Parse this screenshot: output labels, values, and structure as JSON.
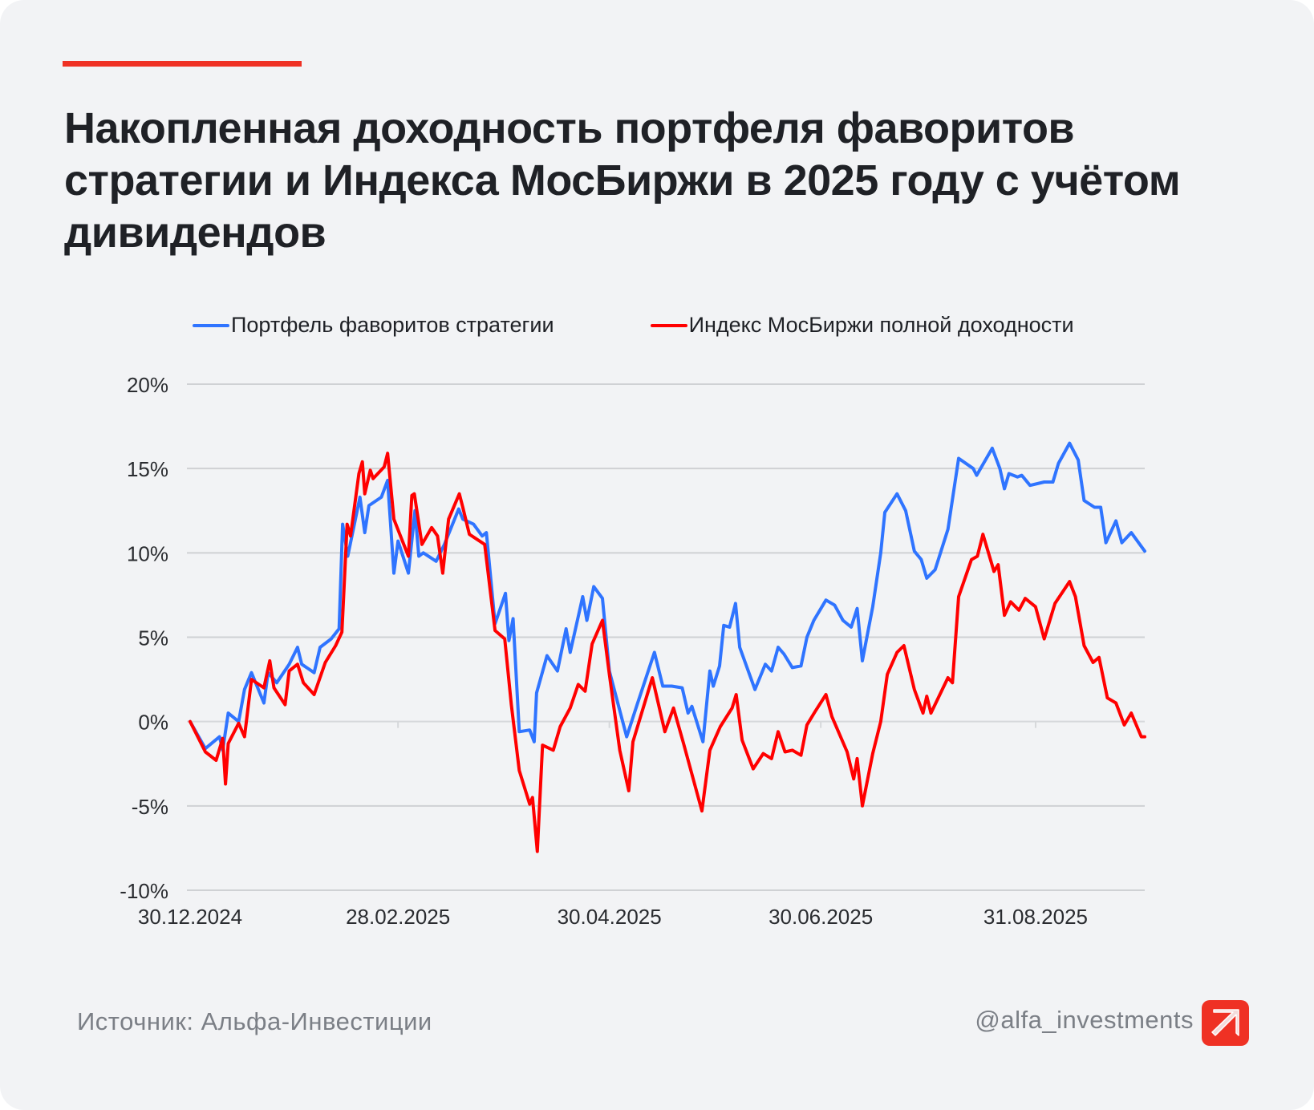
{
  "title": "Накопленная доходность портфеля фаворитов стратегии и Индекса МосБиржи в 2025 году с учётом дивидендов",
  "footer": {
    "source": "Источник: Альфа-Инвестиции",
    "handle": "@alfa_investments",
    "logo_icon": "alfa-arrow-logo-icon"
  },
  "colors": {
    "accent": "#ef3124",
    "blue": "#2f74ff",
    "red": "#ff0000",
    "grid": "#cfd1d4"
  },
  "chart_data": {
    "type": "line",
    "title": "Накопленная доходность портфеля фаворитов стратегии и Индекса МосБиржи в 2025 году с учётом дивидендов",
    "xlabel": "",
    "ylabel": "",
    "x_unit": "days since 30.12.2024",
    "xlim": [
      0,
      275.5
    ],
    "ylim": [
      -10,
      20
    ],
    "yticks": [
      20,
      15,
      10,
      5,
      0,
      -5,
      -10
    ],
    "ytick_labels": [
      "20%",
      "15%",
      "10%",
      "5%",
      "0%",
      "-5%",
      "-10%"
    ],
    "xticks": [
      0,
      60,
      121,
      182,
      244
    ],
    "xtick_labels": [
      "30.12.2024",
      "28.02.2025",
      "30.04.2025",
      "30.06.2025",
      "31.08.2025"
    ],
    "grid": true,
    "legend_position": "top",
    "series": [
      {
        "name": "Портфель фаворитов стратегии",
        "color": "#2f74ff",
        "points": [
          [
            0,
            0
          ],
          [
            4.4,
            -1.6
          ],
          [
            8.5,
            -0.9
          ],
          [
            9.4,
            -1.7
          ],
          [
            11,
            0.5
          ],
          [
            14,
            0
          ],
          [
            15.7,
            1.9
          ],
          [
            17.7,
            2.9
          ],
          [
            21.3,
            1.1
          ],
          [
            22.5,
            2.9
          ],
          [
            25,
            2.3
          ],
          [
            28.6,
            3.4
          ],
          [
            31,
            4.4
          ],
          [
            32.2,
            3.4
          ],
          [
            35.8,
            2.9
          ],
          [
            37.5,
            4.4
          ],
          [
            40.7,
            4.9
          ],
          [
            43,
            5.5
          ],
          [
            44,
            11.7
          ],
          [
            45.5,
            9.8
          ],
          [
            49,
            13.3
          ],
          [
            50.4,
            11.2
          ],
          [
            51.6,
            12.8
          ],
          [
            55.2,
            13.3
          ],
          [
            57,
            14.3
          ],
          [
            58.8,
            8.8
          ],
          [
            60,
            10.7
          ],
          [
            63,
            8.8
          ],
          [
            64.9,
            12.5
          ],
          [
            66,
            9.8
          ],
          [
            67.3,
            10
          ],
          [
            71,
            9.5
          ],
          [
            73.4,
            10.5
          ],
          [
            77.5,
            12.6
          ],
          [
            78.7,
            12
          ],
          [
            81.8,
            11.7
          ],
          [
            84.3,
            11
          ],
          [
            85.5,
            11.2
          ],
          [
            88,
            5.8
          ],
          [
            91,
            7.6
          ],
          [
            92,
            4.8
          ],
          [
            93.2,
            6.1
          ],
          [
            95,
            -0.6
          ],
          [
            98,
            -0.5
          ],
          [
            99.3,
            -1.2
          ],
          [
            100,
            1.7
          ],
          [
            103,
            3.9
          ],
          [
            106,
            3
          ],
          [
            108.5,
            5.5
          ],
          [
            109.7,
            4.1
          ],
          [
            113.3,
            7.4
          ],
          [
            114.5,
            6
          ],
          [
            116.5,
            8
          ],
          [
            119,
            7.3
          ],
          [
            121,
            3
          ],
          [
            126,
            -0.9
          ],
          [
            129,
            1
          ],
          [
            134,
            4.1
          ],
          [
            136.4,
            2.1
          ],
          [
            139,
            2.1
          ],
          [
            142,
            2
          ],
          [
            143.7,
            0.5
          ],
          [
            144.8,
            0.9
          ],
          [
            148,
            -1.2
          ],
          [
            150,
            3
          ],
          [
            151,
            2.1
          ],
          [
            152.8,
            3.3
          ],
          [
            154,
            5.7
          ],
          [
            155.7,
            5.6
          ],
          [
            157.4,
            7
          ],
          [
            158.6,
            4.4
          ],
          [
            163,
            1.9
          ],
          [
            166,
            3.4
          ],
          [
            167.8,
            3
          ],
          [
            169.7,
            4.4
          ],
          [
            171.4,
            4
          ],
          [
            173.8,
            3.2
          ],
          [
            176.3,
            3.3
          ],
          [
            178,
            5
          ],
          [
            180,
            6
          ],
          [
            183.5,
            7.2
          ],
          [
            186,
            6.9
          ],
          [
            188.4,
            6
          ],
          [
            190.8,
            5.6
          ],
          [
            192.5,
            6.7
          ],
          [
            194,
            3.6
          ],
          [
            197,
            6.8
          ],
          [
            199.3,
            10
          ],
          [
            200.5,
            12.4
          ],
          [
            204,
            13.5
          ],
          [
            206.5,
            12.5
          ],
          [
            209,
            10.1
          ],
          [
            211,
            9.6
          ],
          [
            212.6,
            8.5
          ],
          [
            215,
            9
          ],
          [
            218.7,
            11.4
          ],
          [
            221.8,
            15.6
          ],
          [
            226,
            15
          ],
          [
            227,
            14.6
          ],
          [
            231.5,
            16.2
          ],
          [
            233.7,
            15
          ],
          [
            235,
            13.8
          ],
          [
            236.3,
            14.7
          ],
          [
            238.8,
            14.5
          ],
          [
            240,
            14.6
          ],
          [
            242.4,
            14
          ],
          [
            246.5,
            14.2
          ],
          [
            249,
            14.2
          ],
          [
            250.6,
            15.3
          ],
          [
            253.8,
            16.5
          ],
          [
            256.3,
            15.5
          ],
          [
            258,
            13.1
          ],
          [
            261,
            12.7
          ],
          [
            262.8,
            12.7
          ],
          [
            264.3,
            10.6
          ],
          [
            267.2,
            11.9
          ],
          [
            268.9,
            10.6
          ],
          [
            271.6,
            11.2
          ],
          [
            275.5,
            10.1
          ]
        ]
      },
      {
        "name": "Индекс МосБиржи полной доходности",
        "color": "#ff0000",
        "points": [
          [
            0,
            0
          ],
          [
            4.4,
            -1.8
          ],
          [
            7.5,
            -2.3
          ],
          [
            9.4,
            -1
          ],
          [
            10.2,
            -3.7
          ],
          [
            11,
            -1.3
          ],
          [
            14,
            -0.1
          ],
          [
            15.7,
            -0.9
          ],
          [
            17.7,
            2.5
          ],
          [
            21.3,
            2
          ],
          [
            23,
            3.6
          ],
          [
            24.2,
            2
          ],
          [
            27.4,
            1
          ],
          [
            28.6,
            3
          ],
          [
            31,
            3.4
          ],
          [
            32.7,
            2.3
          ],
          [
            35.8,
            1.6
          ],
          [
            39,
            3.5
          ],
          [
            42,
            4.5
          ],
          [
            43.8,
            5.3
          ],
          [
            45.3,
            11.7
          ],
          [
            46.3,
            11
          ],
          [
            48.7,
            14.7
          ],
          [
            49.7,
            15.4
          ],
          [
            50.4,
            13.5
          ],
          [
            52,
            14.9
          ],
          [
            52.8,
            14.4
          ],
          [
            56,
            15.1
          ],
          [
            57,
            15.9
          ],
          [
            58.8,
            12
          ],
          [
            63,
            9.8
          ],
          [
            64,
            13.4
          ],
          [
            64.7,
            13.5
          ],
          [
            66.9,
            10.5
          ],
          [
            69.7,
            11.5
          ],
          [
            71.4,
            11
          ],
          [
            72.9,
            8.8
          ],
          [
            74.6,
            12
          ],
          [
            77.7,
            13.5
          ],
          [
            78.7,
            12.7
          ],
          [
            80.6,
            11.1
          ],
          [
            85,
            10.5
          ],
          [
            88,
            5.4
          ],
          [
            90.8,
            4.9
          ],
          [
            92.7,
            1
          ],
          [
            95,
            -2.9
          ],
          [
            98,
            -4.9
          ],
          [
            98.8,
            -4.5
          ],
          [
            100.2,
            -7.7
          ],
          [
            101.7,
            -1.4
          ],
          [
            104.8,
            -1.7
          ],
          [
            106.8,
            -0.3
          ],
          [
            109.7,
            0.8
          ],
          [
            112,
            2.2
          ],
          [
            114,
            1.8
          ],
          [
            116,
            4.6
          ],
          [
            119,
            6
          ],
          [
            121,
            2.8
          ],
          [
            124,
            -1.7
          ],
          [
            126.6,
            -4.1
          ],
          [
            127.8,
            -1.2
          ],
          [
            133.4,
            2.6
          ],
          [
            137,
            -0.6
          ],
          [
            139.5,
            0.8
          ],
          [
            142.4,
            -1.3
          ],
          [
            147.7,
            -5.3
          ],
          [
            150,
            -1.7
          ],
          [
            153,
            -0.3
          ],
          [
            156.4,
            0.8
          ],
          [
            157.6,
            1.6
          ],
          [
            159.3,
            -1.1
          ],
          [
            162.5,
            -2.8
          ],
          [
            165.4,
            -1.9
          ],
          [
            167.8,
            -2.2
          ],
          [
            169.7,
            -0.6
          ],
          [
            171.7,
            -1.8
          ],
          [
            173.8,
            -1.7
          ],
          [
            176.3,
            -2
          ],
          [
            178,
            -0.2
          ],
          [
            180.4,
            0.6
          ],
          [
            183.5,
            1.6
          ],
          [
            185.2,
            0.3
          ],
          [
            189.6,
            -1.8
          ],
          [
            191.5,
            -3.4
          ],
          [
            192.5,
            -2.2
          ],
          [
            194,
            -5
          ],
          [
            197,
            -1.9
          ],
          [
            199.3,
            0
          ],
          [
            201.2,
            2.8
          ],
          [
            204,
            4.1
          ],
          [
            206,
            4.5
          ],
          [
            209,
            1.9
          ],
          [
            211.5,
            0.5
          ],
          [
            212.6,
            1.5
          ],
          [
            213.8,
            0.5
          ],
          [
            218.7,
            2.6
          ],
          [
            220,
            2.3
          ],
          [
            221.8,
            7.4
          ],
          [
            225.5,
            9.6
          ],
          [
            227.2,
            9.8
          ],
          [
            228.8,
            11.1
          ],
          [
            232,
            8.9
          ],
          [
            233.2,
            9.3
          ],
          [
            235,
            6.3
          ],
          [
            236.8,
            7.1
          ],
          [
            239.2,
            6.6
          ],
          [
            241,
            7.3
          ],
          [
            244,
            6.8
          ],
          [
            246.5,
            4.9
          ],
          [
            249.6,
            7
          ],
          [
            253.8,
            8.3
          ],
          [
            255.5,
            7.4
          ],
          [
            258,
            4.5
          ],
          [
            260.6,
            3.5
          ],
          [
            262.3,
            3.8
          ],
          [
            264.7,
            1.4
          ],
          [
            267.2,
            1.1
          ],
          [
            269.6,
            -0.2
          ],
          [
            271.6,
            0.5
          ],
          [
            274.5,
            -0.9
          ],
          [
            275.5,
            -0.9
          ]
        ]
      }
    ]
  }
}
